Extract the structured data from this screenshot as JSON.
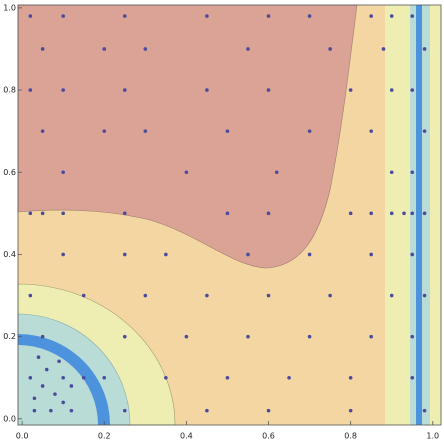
{
  "chart_data": {
    "type": "scatter",
    "x": [
      0.02,
      0.1,
      0.25,
      0.45,
      0.6,
      0.7,
      0.85,
      0.9,
      0.95,
      0.05,
      0.2,
      0.3,
      0.55,
      0.75,
      0.88,
      0.98,
      0.02,
      0.1,
      0.25,
      0.45,
      0.6,
      0.8,
      0.9,
      0.95,
      0.05,
      0.2,
      0.3,
      0.5,
      0.7,
      0.85,
      0.98,
      0.1,
      0.4,
      0.62,
      0.9,
      0.95,
      0.02,
      0.05,
      0.1,
      0.25,
      0.5,
      0.6,
      0.8,
      0.85,
      0.9,
      0.93,
      0.95,
      0.98,
      0.1,
      0.25,
      0.35,
      0.55,
      0.7,
      0.85,
      0.95,
      0.02,
      0.15,
      0.3,
      0.45,
      0.6,
      0.75,
      0.9,
      0.98,
      0.05,
      0.25,
      0.4,
      0.55,
      0.7,
      0.85,
      0.95,
      0.02,
      0.1,
      0.15,
      0.2,
      0.35,
      0.5,
      0.65,
      0.8,
      0.95,
      0.03,
      0.07,
      0.12,
      0.25,
      0.45,
      0.6,
      0.8,
      0.98,
      0.03,
      0.05,
      0.08,
      0.1,
      0.06,
      0.12,
      0.04,
      0.09
    ],
    "values": [
      0.98,
      0.98,
      0.98,
      0.98,
      0.98,
      0.98,
      0.98,
      0.98,
      0.98,
      0.9,
      0.9,
      0.9,
      0.9,
      0.9,
      0.9,
      0.9,
      0.8,
      0.8,
      0.8,
      0.8,
      0.8,
      0.8,
      0.8,
      0.8,
      0.7,
      0.7,
      0.7,
      0.7,
      0.7,
      0.7,
      0.7,
      0.6,
      0.6,
      0.6,
      0.6,
      0.6,
      0.5,
      0.5,
      0.5,
      0.5,
      0.5,
      0.5,
      0.5,
      0.5,
      0.5,
      0.5,
      0.5,
      0.5,
      0.4,
      0.4,
      0.4,
      0.4,
      0.4,
      0.4,
      0.4,
      0.3,
      0.3,
      0.3,
      0.3,
      0.3,
      0.3,
      0.3,
      0.3,
      0.2,
      0.2,
      0.2,
      0.2,
      0.2,
      0.2,
      0.2,
      0.1,
      0.1,
      0.1,
      0.1,
      0.1,
      0.1,
      0.1,
      0.1,
      0.1,
      0.02,
      0.02,
      0.02,
      0.02,
      0.02,
      0.02,
      0.02,
      0.02,
      0.05,
      0.08,
      0.06,
      0.04,
      0.12,
      0.08,
      0.15,
      0.14
    ],
    "color": "#4b4b9e",
    "xlim": [
      -0.01,
      1.02
    ],
    "ylim": [
      -0.015,
      1.007
    ],
    "xticks": [
      {
        "value": 0,
        "label": "0.0"
      },
      0.2,
      0.4,
      0.6,
      0.8,
      {
        "value": 1,
        "label": "1.0"
      }
    ],
    "yticks": [
      {
        "value": 0,
        "label": "0.0"
      },
      0.2,
      0.4,
      0.6,
      0.8,
      {
        "value": 1,
        "label": "1.0"
      }
    ]
  }
}
